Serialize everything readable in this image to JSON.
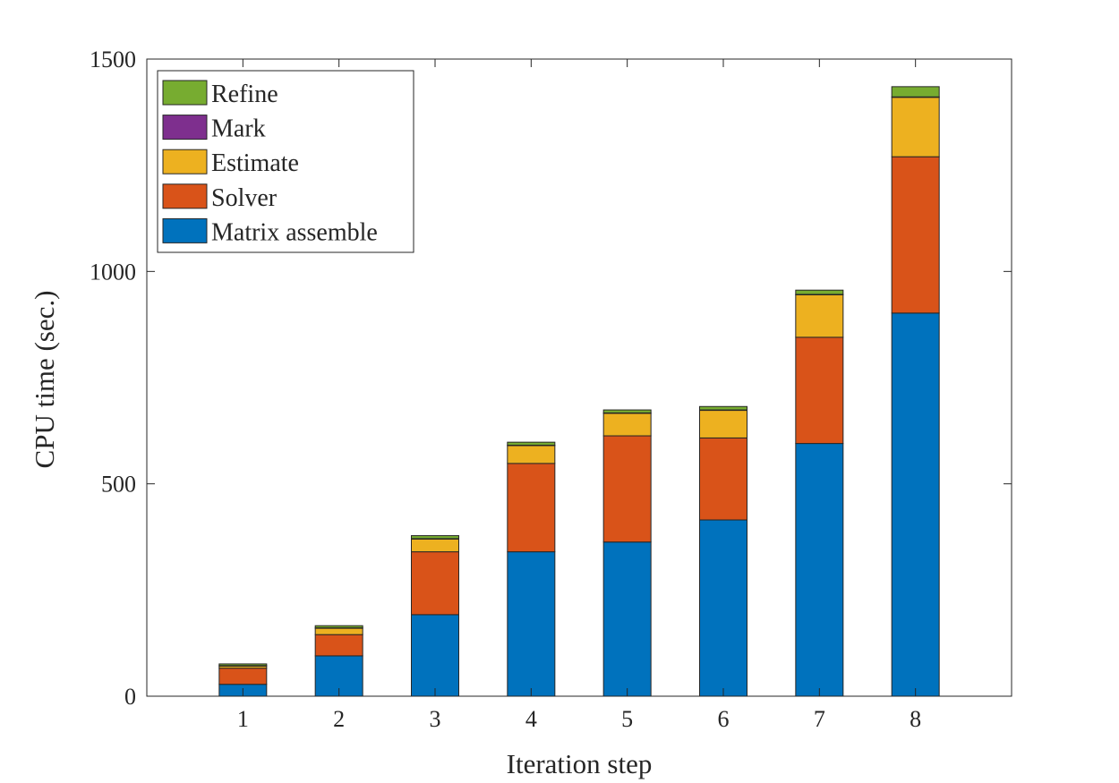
{
  "chart_data": {
    "type": "bar",
    "stacked": true,
    "title": "",
    "xlabel": "Iteration step",
    "ylabel": "CPU time (sec.)",
    "categories": [
      "1",
      "2",
      "3",
      "4",
      "5",
      "6",
      "7",
      "8"
    ],
    "ylim": [
      0,
      1500
    ],
    "yticks": [
      "0",
      "500",
      "1000",
      "1500"
    ],
    "xlim": [
      0,
      9
    ],
    "grid": false,
    "legend_position": "top-left",
    "series": [
      {
        "name": "Matrix assemble",
        "color": "#0072BD",
        "values": [
          28,
          95,
          192,
          340,
          363,
          415,
          595,
          902
        ]
      },
      {
        "name": "Solver",
        "color": "#D95319",
        "values": [
          38,
          50,
          148,
          208,
          250,
          193,
          250,
          368
        ]
      },
      {
        "name": "Estimate",
        "color": "#EDB120",
        "values": [
          5,
          15,
          30,
          42,
          53,
          65,
          100,
          140
        ]
      },
      {
        "name": "Mark",
        "color": "#7E2F8E",
        "values": [
          1,
          1,
          1,
          1,
          1,
          1,
          1,
          1
        ]
      },
      {
        "name": "Refine",
        "color": "#77AC30",
        "values": [
          4,
          5,
          7,
          7,
          7,
          8,
          10,
          24
        ]
      }
    ],
    "legend_order": [
      "Refine",
      "Mark",
      "Estimate",
      "Solver",
      "Matrix assemble"
    ]
  }
}
